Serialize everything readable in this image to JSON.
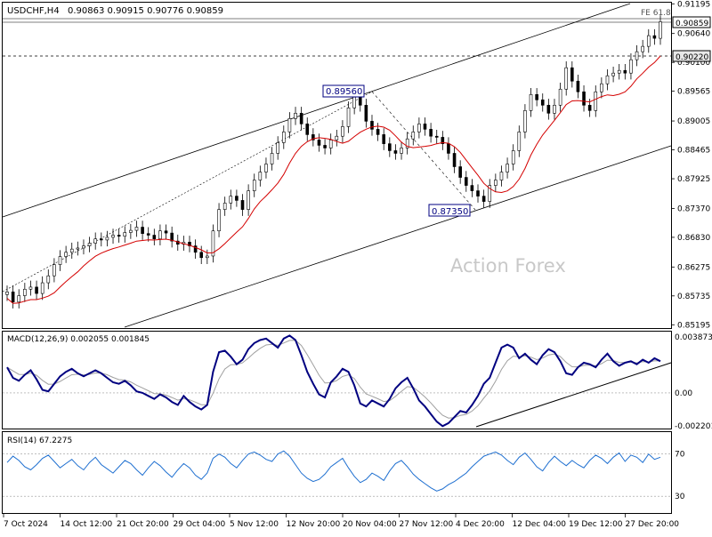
{
  "header": {
    "symbol": "USDCHF,H4",
    "ohlc": "0.90863 0.90915 0.90776 0.90859"
  },
  "watermark": "Action Forex",
  "chart_data": [
    {
      "type": "candlestick",
      "panel": "price",
      "y_ticks": [
        "0.91195",
        "0.90640",
        "0.90100",
        "0.89565",
        "0.89005",
        "0.88465",
        "0.87925",
        "0.87370",
        "0.86830",
        "0.86275",
        "0.85735",
        "0.85195"
      ],
      "ylim": [
        0.8515,
        0.912
      ],
      "current_price": "0.90859",
      "horizontal_level": "0.90220",
      "fib_label": "FE 61.8",
      "annotations": [
        {
          "label": "0.89560",
          "value": 0.8956
        },
        {
          "label": "0.87350",
          "value": 0.8735
        }
      ],
      "close_series": [
        0.8581,
        0.8562,
        0.8574,
        0.8586,
        0.859,
        0.8578,
        0.8598,
        0.8611,
        0.8632,
        0.8647,
        0.8655,
        0.8661,
        0.8663,
        0.8667,
        0.8672,
        0.868,
        0.8678,
        0.8683,
        0.8687,
        0.8685,
        0.8692,
        0.8696,
        0.8702,
        0.869,
        0.8687,
        0.868,
        0.8695,
        0.8691,
        0.8676,
        0.867,
        0.8674,
        0.8667,
        0.8655,
        0.8645,
        0.8648,
        0.8695,
        0.8735,
        0.8747,
        0.876,
        0.8752,
        0.8735,
        0.877,
        0.879,
        0.8805,
        0.882,
        0.884,
        0.886,
        0.888,
        0.8905,
        0.8915,
        0.8895,
        0.8875,
        0.8865,
        0.8855,
        0.885,
        0.8865,
        0.8872,
        0.889,
        0.8925,
        0.8945,
        0.893,
        0.89,
        0.8885,
        0.8875,
        0.8858,
        0.8845,
        0.884,
        0.885,
        0.8867,
        0.888,
        0.8895,
        0.8885,
        0.8872,
        0.887,
        0.8858,
        0.884,
        0.8815,
        0.8795,
        0.878,
        0.877,
        0.876,
        0.875,
        0.878,
        0.879,
        0.8805,
        0.882,
        0.8845,
        0.888,
        0.892,
        0.895,
        0.894,
        0.893,
        0.8915,
        0.893,
        0.896,
        0.9,
        0.8975,
        0.8955,
        0.893,
        0.892,
        0.8955,
        0.897,
        0.8985,
        0.899,
        0.8995,
        0.899,
        0.9015,
        0.903,
        0.904,
        0.906,
        0.9055,
        0.9086
      ],
      "ma_label": "SMA (red)"
    },
    {
      "type": "line",
      "panel": "macd",
      "label": "MACD(12,26,9) 0.002055 0.001845",
      "y_ticks": [
        "0.003873",
        "0.00",
        "-0.002201"
      ],
      "ylim": [
        -0.0023,
        0.004
      ],
      "macd": [
        0.0017,
        0.001,
        0.0008,
        0.0012,
        0.0015,
        0.0009,
        0.0002,
        0.0001,
        0.0006,
        0.0011,
        0.0014,
        0.0016,
        0.0013,
        0.0011,
        0.0013,
        0.0015,
        0.0013,
        0.001,
        0.0007,
        0.0006,
        0.0008,
        0.0005,
        0.0001,
        0.0,
        -0.0002,
        -0.0004,
        -0.0001,
        -0.0003,
        -0.0006,
        -0.0008,
        -0.0002,
        -0.0006,
        -0.0009,
        -0.0011,
        -0.0008,
        0.0014,
        0.0027,
        0.0028,
        0.0024,
        0.0019,
        0.0022,
        0.0029,
        0.0033,
        0.0035,
        0.0036,
        0.0033,
        0.003,
        0.0036,
        0.0038,
        0.0035,
        0.0025,
        0.0014,
        0.0006,
        -0.0001,
        -0.0003,
        0.0007,
        0.0011,
        0.0016,
        0.0014,
        0.0005,
        -0.0007,
        -0.0009,
        -0.0005,
        -0.0007,
        -0.0009,
        -0.0004,
        0.0003,
        0.0007,
        0.001,
        0.0003,
        -0.0005,
        -0.0009,
        -0.0014,
        -0.0019,
        -0.0022,
        -0.002,
        -0.0016,
        -0.0012,
        -0.0013,
        -0.0008,
        -0.0002,
        0.0006,
        0.001,
        0.002,
        0.003,
        0.0032,
        0.003,
        0.0023,
        0.0026,
        0.0022,
        0.0019,
        0.0025,
        0.0029,
        0.0027,
        0.0021,
        0.0013,
        0.0012,
        0.0017,
        0.002,
        0.0019,
        0.0017,
        0.0022,
        0.0026,
        0.0021,
        0.0018,
        0.002,
        0.0021,
        0.0019,
        0.0022,
        0.002,
        0.0023,
        0.0021
      ],
      "signal_series": "grey",
      "trendline": "rising support"
    },
    {
      "type": "line",
      "panel": "rsi",
      "label": "RSI(14) 67.2275",
      "y_ticks": [
        "70",
        "30"
      ],
      "ylim": [
        15,
        90
      ],
      "rsi": [
        62,
        68,
        64,
        58,
        55,
        60,
        66,
        69,
        63,
        57,
        61,
        65,
        59,
        55,
        62,
        67,
        60,
        56,
        52,
        58,
        64,
        61,
        55,
        50,
        57,
        63,
        59,
        53,
        48,
        55,
        61,
        57,
        50,
        46,
        52,
        66,
        70,
        67,
        61,
        57,
        64,
        70,
        72,
        69,
        65,
        63,
        70,
        73,
        68,
        60,
        52,
        47,
        44,
        46,
        51,
        58,
        62,
        66,
        57,
        49,
        43,
        46,
        52,
        49,
        45,
        54,
        61,
        64,
        58,
        51,
        46,
        42,
        38,
        35,
        37,
        41,
        44,
        48,
        52,
        58,
        63,
        68,
        70,
        72,
        69,
        64,
        60,
        67,
        71,
        65,
        58,
        54,
        62,
        68,
        63,
        59,
        64,
        60,
        57,
        64,
        69,
        66,
        61,
        67,
        71,
        63,
        69,
        67,
        62,
        70,
        65,
        67
      ],
      "bands": [
        70,
        30
      ]
    }
  ],
  "x_axis": {
    "labels": [
      "7 Oct 2024",
      "14 Oct 12:00",
      "21 Oct 20:00",
      "29 Oct 04:00",
      "5 Nov 12:00",
      "12 Nov 20:00",
      "20 Nov 04:00",
      "27 Nov 12:00",
      "4 Dec 20:00",
      "12 Dec 04:00",
      "19 Dec 12:00",
      "27 Dec 20:00"
    ]
  }
}
